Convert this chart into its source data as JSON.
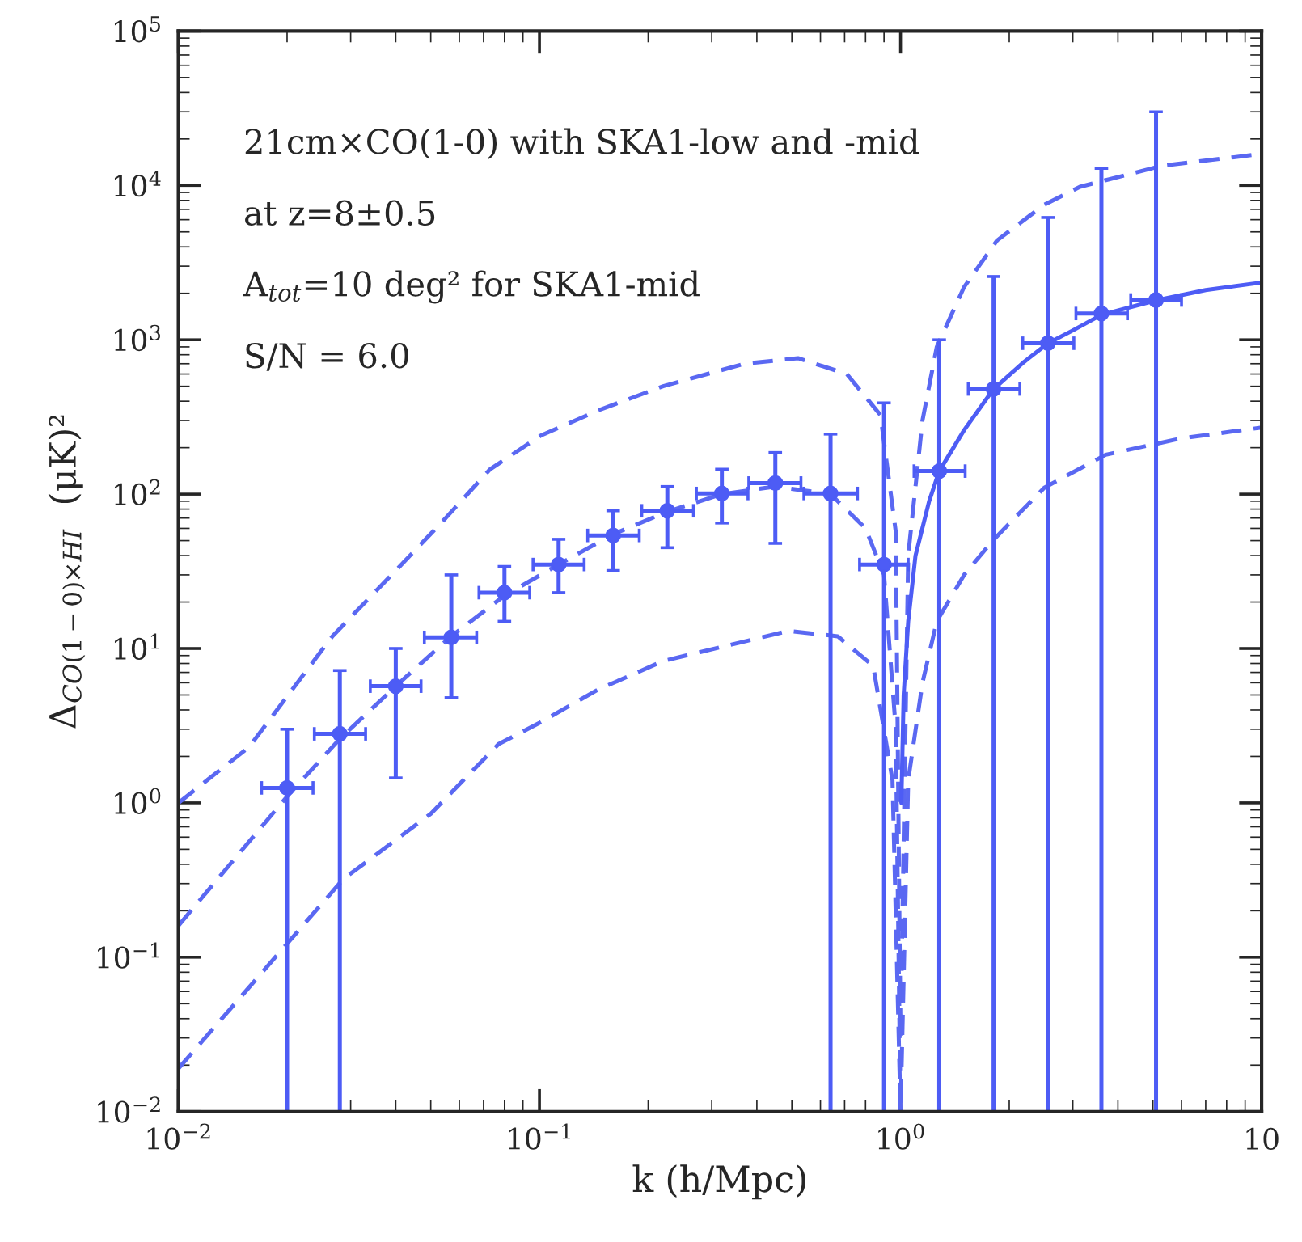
{
  "chart_data": {
    "type": "line",
    "xlabel": "k (h/Mpc)",
    "ylabel": "Δ$_{CO(1−0)×HI}$  (μK)²",
    "log": "xy",
    "grid": false,
    "legend": false,
    "xlim": [
      0.01,
      10
    ],
    "ylim": [
      0.01,
      100000
    ],
    "xticks": [
      {
        "value": 0.01,
        "label": "10$^{−2}$"
      },
      {
        "value": 0.1,
        "label": "10$^{−1}$"
      },
      {
        "value": 1,
        "label": "10$^{0}$"
      },
      10
    ],
    "yticks": [
      {
        "value": 0.01,
        "label": "10$^{−2}$"
      },
      {
        "value": 0.1,
        "label": "10$^{−1}$"
      },
      {
        "value": 1,
        "label": "10$^{0}$"
      },
      {
        "value": 10,
        "label": "10$^{1}$"
      },
      {
        "value": 100,
        "label": "10$^{2}$"
      },
      {
        "value": 1000,
        "label": "10$^{3}$"
      },
      {
        "value": 10000,
        "label": "10$^{4}$"
      },
      {
        "value": 100000,
        "label": "10$^{5}$"
      }
    ],
    "annotations": [
      "21cm×CO(1-0) with SKA1-low and -mid",
      "at z=8±0.5",
      "A$_{tot}$=10 deg² for SKA1-mid",
      "S/N = 6.0"
    ],
    "series": [
      {
        "line_style": "dashed",
        "marker": "none",
        "color": "#5a68f2",
        "x": [
          0.01,
          0.0157,
          0.0267,
          0.04,
          0.055,
          0.073,
          0.101,
          0.146,
          0.22,
          0.37,
          0.52,
          0.71,
          0.88,
          0.97,
          1.0,
          1.05,
          1.15,
          1.26,
          1.5,
          1.85,
          2.5,
          3.14,
          5.3,
          10
        ],
        "values": [
          1.0,
          2.3,
          12,
          32,
          70,
          145,
          240,
          350,
          500,
          700,
          760,
          600,
          325,
          57,
          0.03,
          40,
          300,
          900,
          2200,
          4400,
          7500,
          9800,
          13400,
          16000
        ]
      },
      {
        "line_style": "dashed",
        "marker": "none",
        "color": "#5a68f2",
        "x": [
          0.01,
          0.02,
          0.028,
          0.04,
          0.057,
          0.08,
          0.113,
          0.16,
          0.226,
          0.32,
          0.45,
          0.64,
          0.8,
          0.9,
          0.97,
          1.0
        ],
        "values": [
          0.16,
          1.1,
          2.6,
          5.7,
          12,
          22,
          35,
          55,
          77,
          100,
          112,
          100,
          60,
          30,
          3,
          0.01
        ]
      },
      {
        "line_style": "dashed",
        "marker": "none",
        "color": "#5a68f2",
        "x": [
          0.01,
          0.0286,
          0.05,
          0.077,
          0.1,
          0.145,
          0.22,
          0.49,
          0.67,
          0.84,
          0.95,
          1.0,
          1.05,
          1.15,
          1.26,
          1.5,
          1.8,
          2.5,
          3.7,
          6,
          10
        ],
        "values": [
          0.019,
          0.32,
          0.85,
          2.4,
          3.3,
          5.4,
          8.3,
          13,
          12,
          7.7,
          1.4,
          0.01,
          1.4,
          6,
          15,
          30,
          50,
          110,
          180,
          230,
          270
        ]
      },
      {
        "line_style": "solid",
        "marker": "none",
        "color": "#4d5cf5",
        "x": [
          1.005,
          1.02,
          1.05,
          1.1,
          1.2,
          1.28,
          1.5,
          1.81,
          2.2,
          2.56,
          3.0,
          3.6,
          5.1,
          7,
          10
        ],
        "values": [
          1,
          5,
          15,
          40,
          90,
          141,
          260,
          480,
          720,
          950,
          1150,
          1450,
          1800,
          2100,
          2350
        ]
      },
      {
        "type": "scatter",
        "marker": "circle",
        "color": "#4d5cf5",
        "x": [
          0.02,
          0.028,
          0.04,
          0.057,
          0.08,
          0.113,
          0.16,
          0.226,
          0.32,
          0.45,
          0.64,
          0.9,
          1.28,
          1.81,
          2.56,
          3.6,
          5.1
        ],
        "values": [
          1.25,
          2.8,
          5.7,
          11.8,
          23,
          35,
          54,
          78,
          101,
          118,
          101,
          35,
          141,
          480,
          950,
          1480,
          1810
        ],
        "errors": [
          [
            0.01,
            3.0
          ],
          [
            0.01,
            7.2
          ],
          [
            1.45,
            10
          ],
          [
            4.8,
            30
          ],
          [
            15,
            34
          ],
          [
            23,
            51
          ],
          [
            32,
            78
          ],
          [
            45,
            112
          ],
          [
            65,
            145
          ],
          [
            48,
            186
          ],
          [
            0.01,
            245
          ],
          [
            0.01,
            390
          ],
          [
            0.01,
            1000
          ],
          [
            0.01,
            2570
          ],
          [
            0.01,
            6200
          ],
          [
            0.01,
            12900
          ],
          [
            0.01,
            30000
          ]
        ],
        "xerrors": [
          [
            0.017,
            0.0236
          ],
          [
            0.0238,
            0.033
          ],
          [
            0.034,
            0.047
          ],
          [
            0.048,
            0.067
          ],
          [
            0.068,
            0.094
          ],
          [
            0.096,
            0.133
          ],
          [
            0.136,
            0.189
          ],
          [
            0.192,
            0.267
          ],
          [
            0.272,
            0.378
          ],
          [
            0.38,
            0.53
          ],
          [
            0.54,
            0.76
          ],
          [
            0.77,
            1.05
          ],
          [
            1.09,
            1.51
          ],
          [
            1.54,
            2.14
          ],
          [
            2.18,
            3.02
          ],
          [
            3.06,
            4.25
          ],
          [
            4.34,
            6.0
          ]
        ]
      }
    ]
  }
}
